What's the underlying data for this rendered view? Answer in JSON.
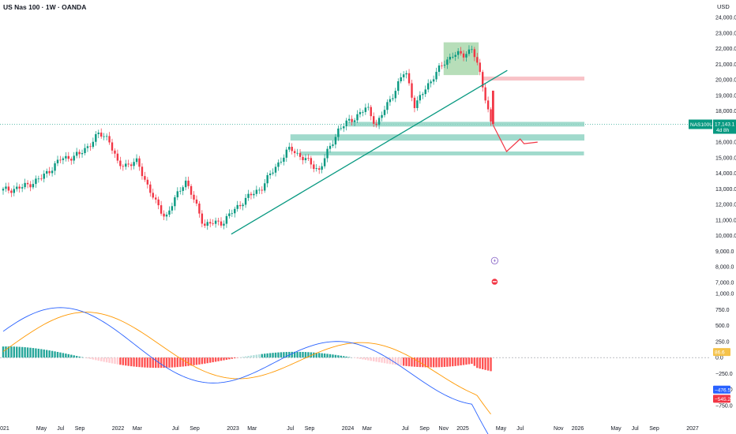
{
  "header": {
    "title": "US Nas 100 · 1W · OANDA",
    "currency": "USD"
  },
  "price_tag": {
    "symbol": "NAS100USD",
    "value": "17,143.1",
    "countdown": "4d 8h"
  },
  "macd_tags": [
    {
      "value": "86.6",
      "color": "#f5c24a",
      "text_color": "#131722"
    },
    {
      "value": "−476.5",
      "color": "#2962ff",
      "text_color": "#ffffff"
    },
    {
      "value": "−545.2",
      "color": "#f23645",
      "text_color": "#ffffff"
    }
  ],
  "colors": {
    "up": "#089981",
    "down": "#f23645",
    "trendline": "#089981",
    "zone_support": "#8fd3c3",
    "zone_resistance": "#f7b7bd",
    "zone_top": "#a5d6a7",
    "macd_line": "#2962ff",
    "signal_line": "#ff9800",
    "hist_up_strong": "#26a69a",
    "hist_up_weak": "#b2dfdb",
    "hist_down_strong": "#ff5252",
    "hist_down_weak": "#ffcdd2"
  },
  "chart_data": [
    {
      "type": "candlestick",
      "title": "US Nas 100 · 1W · OANDA",
      "y_axis_ticks": [
        "24,000.0",
        "23,000.0",
        "22,000.0",
        "21,000.0",
        "20,000.0",
        "19,000.0",
        "18,000.0",
        "17,000.0",
        "16,000.0",
        "15,000.0",
        "14,000.0",
        "13,000.0",
        "12,000.0",
        "11,000.0",
        "10,000.0",
        "9,000.0",
        "8,000.0",
        "7,000.0"
      ],
      "x_axis_ticks": [
        "2021",
        "May",
        "Jul",
        "Sep",
        "2022",
        "Mar",
        "Jul",
        "Sep",
        "2023",
        "Mar",
        "Jul",
        "Sep",
        "2024",
        "Mar",
        "Jul",
        "Sep",
        "Nov",
        "2025",
        "May",
        "Jul",
        "Nov",
        "2026",
        "May",
        "Jul",
        "Sep",
        "2027"
      ],
      "series_close_path": [
        [
          "2021-01",
          12900
        ],
        [
          "2021-03",
          13100
        ],
        [
          "2021-05",
          13700
        ],
        [
          "2021-07",
          14900
        ],
        [
          "2021-09",
          15200
        ],
        [
          "2021-11",
          16500
        ],
        [
          "2021-12",
          16300
        ],
        [
          "2022-01",
          14500
        ],
        [
          "2022-03",
          14700
        ],
        [
          "2022-05",
          12000
        ],
        [
          "2022-06",
          11200
        ],
        [
          "2022-08",
          13600
        ],
        [
          "2022-10",
          10700
        ],
        [
          "2022-12",
          10900
        ],
        [
          "2023-02",
          12200
        ],
        [
          "2023-04",
          13100
        ],
        [
          "2023-06",
          14900
        ],
        [
          "2023-07",
          15600
        ],
        [
          "2023-10",
          14200
        ],
        [
          "2023-12",
          16800
        ],
        [
          "2024-03",
          18200
        ],
        [
          "2024-04",
          17100
        ],
        [
          "2024-07",
          20600
        ],
        [
          "2024-08",
          18300
        ],
        [
          "2024-10",
          20300
        ],
        [
          "2024-12",
          21700
        ],
        [
          "2025-01",
          21500
        ],
        [
          "2025-02",
          22100
        ],
        [
          "2025-03",
          19800
        ],
        [
          "2025-04",
          17143
        ]
      ],
      "last_price": 17143.1,
      "trendline": {
        "from": [
          "2022-12",
          10100
        ],
        "to": [
          "2025-04",
          20600
        ]
      },
      "zones": [
        {
          "label": "",
          "kind": "resistance",
          "from": "2025-03",
          "to": "2026-02",
          "y_low": 19950,
          "y_high": 20200
        },
        {
          "label": "",
          "kind": "top",
          "from": "2024-11",
          "to": "2025-02",
          "y_low": 20300,
          "y_high": 22400
        },
        {
          "label": "",
          "kind": "support",
          "from": "2024-01",
          "to": "2026-02",
          "y_low": 17000,
          "y_high": 17300
        },
        {
          "label": "",
          "kind": "support",
          "from": "2023-07",
          "to": "2026-02",
          "y_low": 16100,
          "y_high": 16500
        },
        {
          "label": "",
          "kind": "support",
          "from": "2023-08",
          "to": "2026-01",
          "y_low": 15150,
          "y_high": 15400
        }
      ],
      "projection": [
        [
          "2025-04",
          17100
        ],
        [
          "2025-05",
          15400
        ],
        [
          "2025-06",
          16200
        ],
        [
          "2025-06",
          15900
        ],
        [
          "2025-07",
          16000
        ]
      ]
    },
    {
      "type": "macd",
      "y_axis_ticks": [
        "1,000.0",
        "750.0",
        "500.0",
        "250.0",
        "0.0",
        "−250.0",
        "−500.0",
        "−750.0"
      ],
      "ylim": [
        -850,
        1100
      ]
    }
  ]
}
